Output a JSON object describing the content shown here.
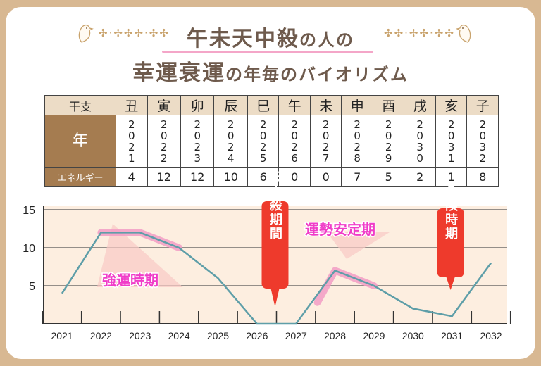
{
  "header": {
    "title_line1_main": "午未天中殺",
    "title_line1_tail": "の人の",
    "title_line2_a": "幸運衰運",
    "title_line2_b": "の年毎のバイオリズム"
  },
  "table": {
    "row_labels": {
      "eto": "干支",
      "year": "年",
      "energy": "エネルギー"
    },
    "columns": [
      {
        "eto": "丑",
        "year": "2021",
        "energy": "4"
      },
      {
        "eto": "寅",
        "year": "2022",
        "energy": "12"
      },
      {
        "eto": "卯",
        "year": "2023",
        "energy": "12"
      },
      {
        "eto": "辰",
        "year": "2024",
        "energy": "10"
      },
      {
        "eto": "巳",
        "year": "2025",
        "energy": "6"
      },
      {
        "eto": "午",
        "year": "2026",
        "energy": "0"
      },
      {
        "eto": "未",
        "year": "2027",
        "energy": "0"
      },
      {
        "eto": "申",
        "year": "2028",
        "energy": "7"
      },
      {
        "eto": "酉",
        "year": "2029",
        "energy": "5"
      },
      {
        "eto": "戌",
        "year": "2030",
        "energy": "2"
      },
      {
        "eto": "亥",
        "year": "2031",
        "energy": "1"
      },
      {
        "eto": "子",
        "year": "2032",
        "energy": "8"
      }
    ]
  },
  "chart_data": {
    "type": "line",
    "categories": [
      "2021",
      "2022",
      "2023",
      "2024",
      "2025",
      "2026",
      "2027",
      "2028",
      "2029",
      "2030",
      "2031",
      "2032"
    ],
    "values": [
      4,
      12,
      12,
      10,
      6,
      0,
      0,
      7,
      5,
      2,
      1,
      8
    ],
    "ylim": [
      0,
      15
    ],
    "yticks": [
      "5",
      "10",
      "15"
    ],
    "grid": true,
    "line_color": "#5e9ea8",
    "highlight_color": "#f29cc4",
    "annotations": [
      {
        "text": "強運時期",
        "range": [
          "2022",
          "2024"
        ],
        "color": "#f03cc8"
      },
      {
        "text": "運勢安定期",
        "range": [
          "2028",
          "2029"
        ],
        "color": "#f03cc8"
      }
    ],
    "callouts": [
      {
        "text": "天中殺期間",
        "at": "2026-2027",
        "color": "#ee3a2c"
      },
      {
        "text": "危険時期",
        "at": "2031",
        "color": "#ee3a2c"
      }
    ]
  }
}
